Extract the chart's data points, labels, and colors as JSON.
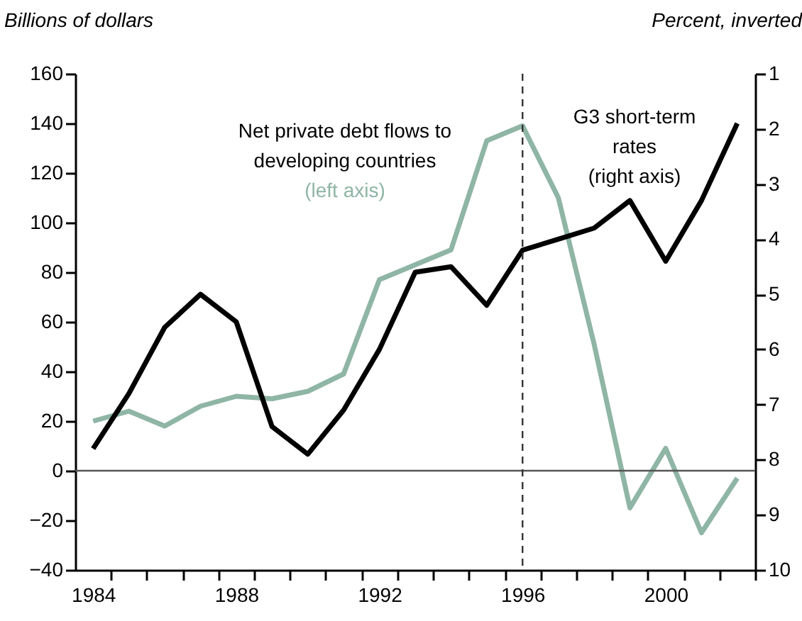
{
  "chart_data": {
    "type": "line",
    "ylabel": "Billions of dollars",
    "y2label": "Percent, inverted",
    "annotations": [
      "Net private debt flows to\ndeveloping countries",
      "(left axis)",
      "G3 short-term\nrates\n(right axis)"
    ],
    "x": [
      1984,
      1985,
      1986,
      1987,
      1988,
      1989,
      1990,
      1991,
      1992,
      1993,
      1994,
      1995,
      1996,
      1997,
      1998,
      1999,
      2000,
      2001,
      2002
    ],
    "series": [
      {
        "color": "#8fb5a5",
        "values": [
          20,
          24,
          18,
          26,
          30,
          29,
          32,
          39,
          77,
          83,
          89,
          133,
          139,
          110,
          51,
          -15,
          9,
          -25,
          -3
        ]
      },
      {
        "color": "#000000",
        "axis": "y2",
        "values": [
          7.8,
          6.8,
          5.6,
          5.0,
          5.5,
          7.4,
          7.9,
          7.1,
          6.0,
          4.6,
          4.5,
          5.2,
          4.2,
          4.0,
          3.8,
          3.3,
          4.4,
          3.3,
          1.9
        ]
      }
    ],
    "xlim": [
      1983.5,
      2002.5
    ],
    "xticks": [
      1984,
      1988,
      1992,
      1996,
      2000,
      {
        "value": 1984.5,
        "label": null
      },
      {
        "value": 1985.5,
        "label": null
      },
      {
        "value": 1986.5,
        "label": null
      },
      {
        "value": 1987.5,
        "label": null
      },
      {
        "value": 1988.5,
        "label": null
      },
      {
        "value": 1989.5,
        "label": null
      },
      {
        "value": 1990.5,
        "label": null
      },
      {
        "value": 1991.5,
        "label": null
      },
      {
        "value": 1992.5,
        "label": null
      },
      {
        "value": 1993.5,
        "label": null
      },
      {
        "value": 1994.5,
        "label": null
      },
      {
        "value": 1995.5,
        "label": null
      },
      {
        "value": 1996.5,
        "label": null
      },
      {
        "value": 1997.5,
        "label": null
      },
      {
        "value": 1998.5,
        "label": null
      },
      {
        "value": 1999.5,
        "label": null
      },
      {
        "value": 2000.5,
        "label": null
      },
      {
        "value": 2001.5,
        "label": null
      },
      {
        "value": 2002.5,
        "label": null
      }
    ],
    "ylim": [
      -40,
      160
    ],
    "yticks": [
      {
        "value": -40,
        "label": "−40"
      },
      {
        "value": -20,
        "label": "−20"
      },
      0,
      20,
      40,
      60,
      80,
      100,
      120,
      140,
      160
    ],
    "y2lim": [
      10,
      1
    ],
    "y2ticks": [
      1,
      2,
      3,
      4,
      5,
      6,
      7,
      8,
      9,
      10
    ],
    "ref_lines": [
      {
        "axis": "x",
        "value": 1996,
        "color": "#333333",
        "line_style": "dashed"
      },
      {
        "axis": "y",
        "value": 0,
        "color": "#555555",
        "line_style": "solid"
      }
    ],
    "grid": false,
    "marker": "none",
    "line_style": "solid"
  }
}
